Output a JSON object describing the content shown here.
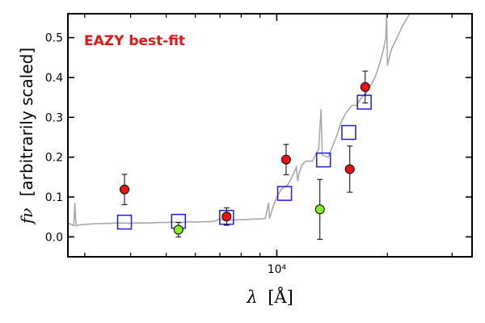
{
  "chart_data": {
    "type": "scatter",
    "title": "",
    "annotation": "EAZY best-fit",
    "annotation_color": "#ee1111",
    "xlabel_symbol": "λ",
    "xlabel_unit": "[Å]",
    "ylabel_symbol": "fν",
    "ylabel_text": "[arbitrarily scaled]",
    "xscale": "log",
    "xlim": [
      2700,
      34000
    ],
    "ylim": [
      -0.05,
      0.56
    ],
    "yticks": [
      0.0,
      0.1,
      0.2,
      0.3,
      0.4,
      0.5
    ],
    "ytick_labels": [
      "0.0",
      "0.1",
      "0.2",
      "0.3",
      "0.4",
      "0.5"
    ],
    "xtick_major": [
      10000
    ],
    "xtick_major_labels": [
      "10⁴"
    ],
    "xtick_minor": [
      3000,
      4000,
      5000,
      6000,
      7000,
      8000,
      9000,
      20000,
      30000
    ],
    "grid": false,
    "colors": {
      "sed": "#a8a8a8",
      "model_box": "#1c1cd9",
      "detection": "#ee1111",
      "nondetection": "#80ee22",
      "errorbar": "#000000"
    },
    "sed_template": [
      [
        2700,
        0.035
      ],
      [
        2800,
        0.028
      ],
      [
        2820,
        0.085
      ],
      [
        2840,
        0.028
      ],
      [
        2900,
        0.03
      ],
      [
        3000,
        0.031
      ],
      [
        3200,
        0.033
      ],
      [
        3500,
        0.034
      ],
      [
        3700,
        0.035
      ],
      [
        4000,
        0.034
      ],
      [
        4200,
        0.035
      ],
      [
        4500,
        0.035
      ],
      [
        4800,
        0.036
      ],
      [
        5000,
        0.036
      ],
      [
        5200,
        0.037
      ],
      [
        5500,
        0.036
      ],
      [
        5800,
        0.038
      ],
      [
        6000,
        0.037
      ],
      [
        6300,
        0.038
      ],
      [
        6600,
        0.038
      ],
      [
        6800,
        0.04
      ],
      [
        7000,
        0.045
      ],
      [
        7200,
        0.042
      ],
      [
        7500,
        0.042
      ],
      [
        8000,
        0.043
      ],
      [
        8500,
        0.044
      ],
      [
        9000,
        0.045
      ],
      [
        9300,
        0.046
      ],
      [
        9500,
        0.085
      ],
      [
        9550,
        0.046
      ],
      [
        9800,
        0.08
      ],
      [
        10000,
        0.1
      ],
      [
        10300,
        0.12
      ],
      [
        10700,
        0.13
      ],
      [
        11000,
        0.15
      ],
      [
        11300,
        0.175
      ],
      [
        11400,
        0.14
      ],
      [
        11500,
        0.16
      ],
      [
        11700,
        0.18
      ],
      [
        12000,
        0.19
      ],
      [
        12500,
        0.19
      ],
      [
        12800,
        0.21
      ],
      [
        13000,
        0.22
      ],
      [
        13200,
        0.32
      ],
      [
        13300,
        0.205
      ],
      [
        13800,
        0.2
      ],
      [
        14500,
        0.25
      ],
      [
        15000,
        0.29
      ],
      [
        15400,
        0.31
      ],
      [
        16000,
        0.33
      ],
      [
        16500,
        0.33
      ],
      [
        17000,
        0.35
      ],
      [
        17500,
        0.36
      ],
      [
        18000,
        0.38
      ],
      [
        18500,
        0.4
      ],
      [
        19000,
        0.43
      ],
      [
        19500,
        0.47
      ],
      [
        19800,
        0.5
      ],
      [
        19900,
        0.56
      ],
      [
        20000,
        0.43
      ],
      [
        20500,
        0.47
      ],
      [
        21000,
        0.49
      ],
      [
        21500,
        0.51
      ],
      [
        22000,
        0.53
      ],
      [
        23000,
        0.56
      ]
    ],
    "model_fluxes": [
      {
        "x": 3850,
        "y": 0.037
      },
      {
        "x": 5400,
        "y": 0.039
      },
      {
        "x": 7300,
        "y": 0.049
      },
      {
        "x": 10500,
        "y": 0.109
      },
      {
        "x": 13400,
        "y": 0.193
      },
      {
        "x": 15700,
        "y": 0.262
      },
      {
        "x": 17300,
        "y": 0.338
      }
    ],
    "observed_detections": [
      {
        "x": 3850,
        "y": 0.119,
        "err": 0.038
      },
      {
        "x": 7300,
        "y": 0.051,
        "err": 0.022
      },
      {
        "x": 10600,
        "y": 0.194,
        "err": 0.038
      },
      {
        "x": 15800,
        "y": 0.17,
        "err": 0.058
      },
      {
        "x": 17400,
        "y": 0.376,
        "err": 0.04
      }
    ],
    "observed_nondetections": [
      {
        "x": 5400,
        "y": 0.018,
        "err": 0.018
      },
      {
        "x": 13100,
        "y": 0.069,
        "err": 0.075
      }
    ]
  }
}
